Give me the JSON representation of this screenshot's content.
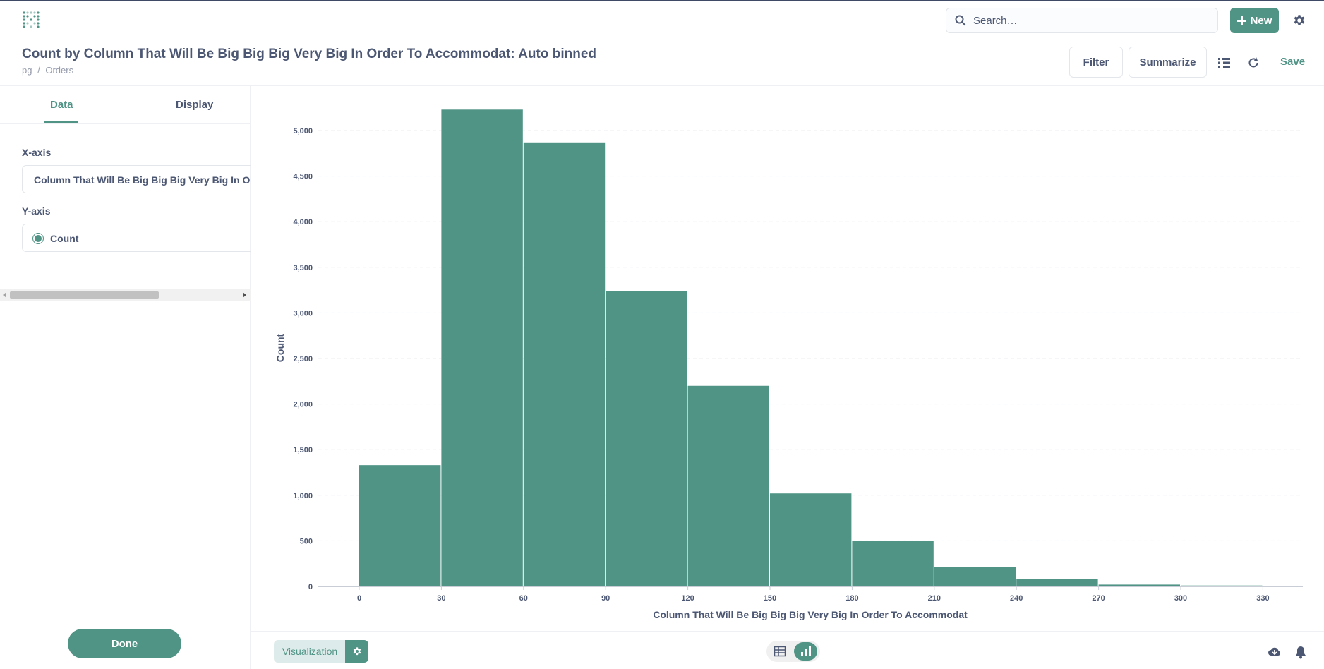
{
  "search": {
    "placeholder": "Search…"
  },
  "header_actions": {
    "new_label": "New",
    "filter_label": "Filter",
    "summarize_label": "Summarize",
    "save_label": "Save"
  },
  "question": {
    "title": "Count by Column That Will Be Big Big Big Very Big In Order To Accommodat: Auto binned",
    "breadcrumb": [
      "pg",
      "/",
      "Orders"
    ]
  },
  "sidebar": {
    "tabs": [
      {
        "label": "Data"
      },
      {
        "label": "Display"
      }
    ],
    "x_axis_label": "X-axis",
    "x_axis_value": "Column That Will Be Big Big Big Very Big In Order To Accommodat",
    "y_axis_label": "Y-axis",
    "y_axis_value": "Count",
    "done_label": "Done"
  },
  "footer": {
    "visualization_label": "Visualization"
  },
  "colors": {
    "brand": "#509486",
    "text": "#4c5773"
  },
  "icons": [
    "logo-icon",
    "search-icon",
    "plus-icon",
    "gear-icon",
    "list-icon",
    "refresh-icon",
    "table-icon",
    "bar-chart-icon",
    "download-icon",
    "bell-icon"
  ],
  "chart_data": {
    "type": "bar",
    "title": "",
    "xlabel": "Column That Will Be Big Big Big Very Big In Order To Accommodat",
    "ylabel": "Count",
    "x": [
      0,
      30,
      60,
      90,
      120,
      150,
      180,
      210,
      240,
      270,
      300
    ],
    "bin_width": 30,
    "values": [
      1330,
      5230,
      4870,
      3240,
      2200,
      1020,
      500,
      215,
      80,
      20,
      10
    ],
    "ylim": [
      0,
      5000
    ],
    "y_ticks": [
      0,
      500,
      1000,
      1500,
      2000,
      2500,
      3000,
      3500,
      4000,
      4500,
      5000
    ],
    "x_ticks": [
      0,
      30,
      60,
      90,
      120,
      150,
      180,
      210,
      240,
      270,
      300,
      330
    ],
    "grid": true,
    "legend": "none"
  }
}
